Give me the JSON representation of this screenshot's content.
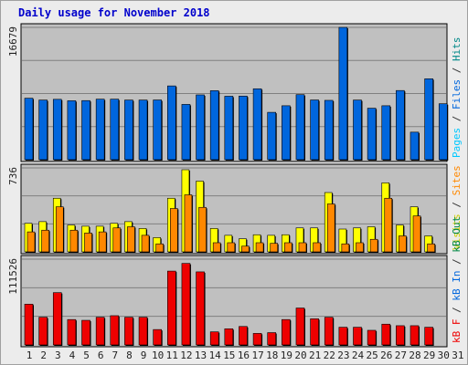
{
  "chart_data": {
    "type": "bar",
    "title": "Daily usage for November 2018",
    "days": [
      "1",
      "2",
      "3",
      "4",
      "5",
      "6",
      "7",
      "8",
      "9",
      "10",
      "11",
      "12",
      "13",
      "14",
      "15",
      "16",
      "17",
      "18",
      "19",
      "20",
      "21",
      "22",
      "23",
      "24",
      "25",
      "26",
      "27",
      "28",
      "29",
      "30",
      "31"
    ],
    "weekend_days": [
      "3",
      "4",
      "10",
      "11",
      "17",
      "18",
      "24",
      "25",
      "31"
    ],
    "colors": {
      "hits": "#00aacc",
      "files": "#0066dd",
      "pages": "#00c8ff",
      "visits": "#ffff00",
      "sites": "#ff8800",
      "kb_in": "#0066dd",
      "kb_out": "#008844",
      "kb_f": "#ee0000",
      "weekday_label": "#000000",
      "weekend_label": "#007755",
      "panel_bg": "#c0c0c0",
      "grid": "#808080"
    },
    "panels": [
      {
        "name": "hits-files-pages",
        "ymax_label": "16679",
        "ymax": 16679,
        "legend": [
          {
            "text": "Pages",
            "color": "#00c8ff"
          },
          {
            "text": " / ",
            "color": "#333333"
          },
          {
            "text": "Files",
            "color": "#0066dd"
          },
          {
            "text": " / ",
            "color": "#333333"
          },
          {
            "text": "Hits",
            "color": "#008888"
          }
        ],
        "series": [
          {
            "name": "Hits",
            "color": "#0066dd",
            "values": [
              7750,
              7520,
              7610,
              7430,
              7450,
              7630,
              7630,
              7520,
              7520,
              7530,
              9300,
              6970,
              8170,
              8700,
              8000,
              8020,
              8940,
              5970,
              6800,
              8200,
              7530,
              7480,
              16679,
              7520,
              6490,
              6800,
              8720,
              3470,
              10200,
              7050,
              0
            ]
          }
        ]
      },
      {
        "name": "visits-sites",
        "ymax_label": "736",
        "ymax": 736,
        "legend": [
          {
            "text": "Visits",
            "color": "#cccc00"
          },
          {
            "text": " / ",
            "color": "#333333"
          },
          {
            "text": "Sites",
            "color": "#ff8800"
          }
        ],
        "series": [
          {
            "name": "Visits",
            "color": "#ffff00",
            "values": [
              250,
              265,
              470,
              235,
              225,
              225,
              250,
              265,
              205,
              125,
              470,
              720,
              620,
              205,
              145,
              115,
              150,
              145,
              150,
              210,
              210,
              520,
              200,
              210,
              220,
              605,
              235,
              395,
              140,
              0,
              0
            ]
          },
          {
            "name": "Sites",
            "color": "#ff8800",
            "values": [
              175,
              190,
              395,
              190,
              165,
              175,
              210,
              220,
              145,
              70,
              380,
              500,
              390,
              80,
              80,
              50,
              80,
              75,
              80,
              80,
              80,
              420,
              70,
              80,
              110,
              470,
              140,
              315,
              70,
              0,
              0
            ]
          }
        ]
      },
      {
        "name": "kbytes",
        "ymax_label": "111526",
        "ymax": 111526,
        "legend": [
          {
            "text": "kB F",
            "color": "#ee0000"
          },
          {
            "text": " / ",
            "color": "#333333"
          },
          {
            "text": "kB In",
            "color": "#0066dd"
          },
          {
            "text": " / ",
            "color": "#333333"
          },
          {
            "text": "kB Out",
            "color": "#008844"
          }
        ],
        "series": [
          {
            "name": "kB F",
            "color": "#ee0000",
            "values": [
              53000,
              36000,
              68000,
              33000,
              32000,
              36000,
              38000,
              36000,
              36000,
              20000,
              96000,
              106000,
              95000,
              17000,
              21000,
              24000,
              15000,
              16000,
              33000,
              48000,
              34000,
              36000,
              23000,
              23000,
              19000,
              27000,
              25000,
              25000,
              23000,
              0,
              0
            ]
          }
        ]
      }
    ]
  }
}
